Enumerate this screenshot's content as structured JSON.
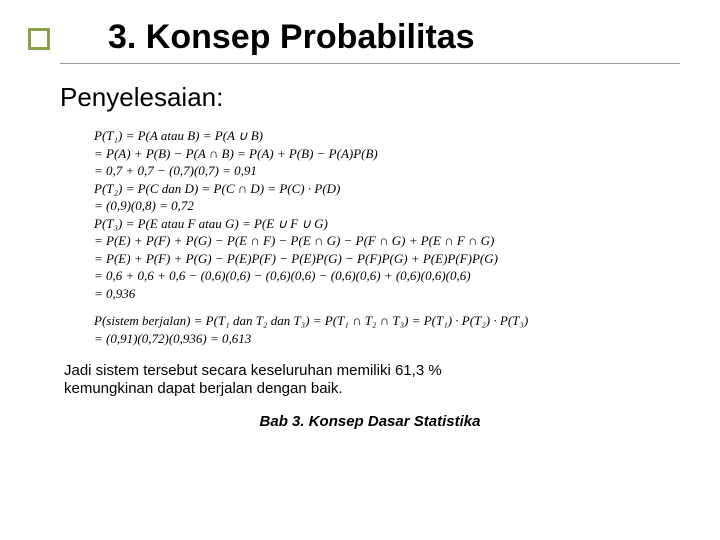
{
  "accent": {
    "border_color": "#8aa04a",
    "size": 22
  },
  "title": {
    "text": "3. Konsep Probabilitas",
    "fontsize": 34,
    "color": "#000000"
  },
  "subtitle": {
    "text": "Penyelesaian:",
    "fontsize": 26,
    "color": "#000000"
  },
  "math": {
    "fontsize": 13,
    "color": "#000000",
    "block1": [
      "P(T₁) = P(A atau B) = P(A ∪ B)",
      "       = P(A) + P(B) − P(A ∩ B) = P(A) + P(B) − P(A)P(B)",
      "       = 0,7 + 0,7 − (0,7)(0,7) = 0,91",
      "P(T₂) = P(C dan D) = P(C ∩ D) = P(C) · P(D)",
      "       = (0,9)(0,8) = 0,72",
      "P(T₃) = P(E atau F atau G) = P(E ∪ F ∪ G)",
      "       = P(E) + P(F) + P(G) − P(E ∩ F) − P(E ∩ G) − P(F ∩ G) + P(E ∩ F ∩ G)",
      "       = P(E) + P(F) + P(G) − P(E)P(F) − P(E)P(G) − P(F)P(G) + P(E)P(F)P(G)",
      "       = 0,6 + 0,6 + 0,6 − (0,6)(0,6) − (0,6)(0,6) − (0,6)(0,6) + (0,6)(0,6)(0,6)",
      "       = 0,936"
    ],
    "block2": [
      "P(sistem berjalan) = P(T₁ dan T₂ dan T₃) = P(T₁ ∩ T₂ ∩ T₃) = P(T₁) · P(T₂) · P(T₃)",
      "                          = (0,91)(0,72)(0,936) = 0,613"
    ]
  },
  "conclusion": {
    "line1": "Jadi sistem tersebut secara keseluruhan memiliki 61,3 %",
    "line2": "kemungkinan dapat berjalan dengan baik.",
    "fontsize": 15
  },
  "footer": {
    "text": "Bab 3. Konsep Dasar Statistika",
    "fontsize": 15
  }
}
